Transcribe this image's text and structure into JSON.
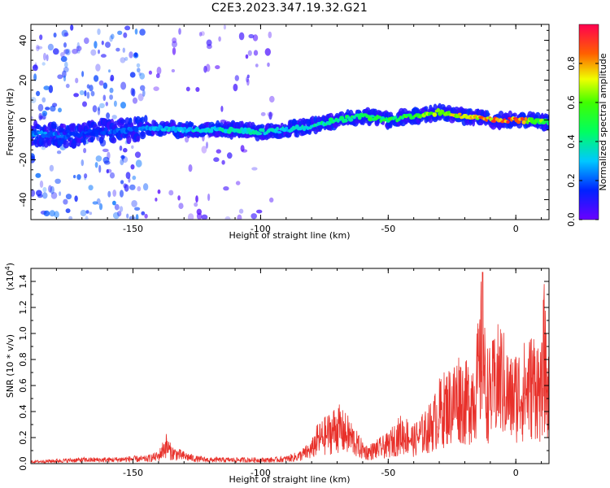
{
  "title": "C2E3.2023.347.19.32.G21",
  "chart_data": [
    {
      "type": "heatmap",
      "xlabel": "Height of straight line (km)",
      "ylabel": "Frequency (Hz)",
      "xlim": [
        -190,
        13
      ],
      "ylim": [
        -50,
        48
      ],
      "xticks": [
        -150,
        -100,
        -50,
        0
      ],
      "yticks": [
        -40,
        -20,
        0,
        20,
        40
      ],
      "colorbar": {
        "label": "Normalized spectral amplitude",
        "ticks": [
          0.0,
          0.2,
          0.4,
          0.6,
          0.8
        ],
        "tick_labels": [
          "0.0",
          "0.2",
          "0.4",
          "0.6",
          "0.8"
        ],
        "range": [
          0,
          1
        ]
      },
      "ridge": {
        "x": [
          -185,
          -175,
          -165,
          -150,
          -140,
          -130,
          -120,
          -110,
          -100,
          -90,
          -80,
          -70,
          -60,
          -50,
          -40,
          -30,
          -20,
          -10,
          0,
          12
        ],
        "y": [
          -7,
          -8,
          -6,
          -5,
          -4,
          -5,
          -5,
          -5,
          -6,
          -5,
          -3,
          0,
          2,
          0,
          2,
          4,
          2,
          0,
          0,
          -1
        ],
        "amplitude": [
          0.25,
          0.2,
          0.18,
          0.22,
          0.3,
          0.35,
          0.35,
          0.4,
          0.38,
          0.35,
          0.4,
          0.45,
          0.5,
          0.5,
          0.6,
          0.7,
          0.8,
          0.85,
          0.95,
          0.55
        ]
      },
      "scatter_regions": [
        {
          "x": [
            -190,
            -145
          ],
          "density": 0.85,
          "intensity": 0.15
        },
        {
          "x": [
            -145,
            -115
          ],
          "density": 0.25,
          "intensity": 0.05
        },
        {
          "x": [
            -115,
            -95
          ],
          "density": 0.3,
          "intensity": 0.06
        }
      ]
    },
    {
      "type": "line",
      "xlabel": "Height of straight line (km)",
      "ylabel": "SNR (10 * v/v)",
      "multiplier_label": "(x10",
      "multiplier_exp": "4",
      "xlim": [
        -190,
        13
      ],
      "ylim": [
        0,
        1.5
      ],
      "xticks": [
        -150,
        -100,
        -50,
        0
      ],
      "yticks": [
        0.0,
        0.2,
        0.4,
        0.6,
        0.8,
        1.0,
        1.2,
        1.4
      ],
      "ytick_labels": [
        "0.0",
        "0.2",
        "0.4",
        "0.6",
        "0.8",
        "1.0",
        "1.2",
        "1.4"
      ],
      "color": "#e8302a",
      "series": [
        {
          "x": [
            -190,
            -180,
            -170,
            -160,
            -150,
            -145,
            -140,
            -137,
            -135,
            -130,
            -125,
            -120,
            -110,
            -100,
            -95,
            -90,
            -85,
            -80,
            -78,
            -75,
            -72,
            -70,
            -68,
            -65,
            -62,
            -60,
            -58,
            -55,
            -52,
            -50,
            -48,
            -45,
            -42,
            -40,
            -38,
            -35,
            -32,
            -30,
            -28,
            -25,
            -22,
            -20,
            -18,
            -16,
            -14,
            -13,
            -12,
            -10,
            -8,
            -6,
            -4,
            -2,
            0,
            2,
            4,
            6,
            8,
            10,
            11,
            12,
            13
          ],
          "y": [
            0.02,
            0.03,
            0.04,
            0.04,
            0.05,
            0.05,
            0.08,
            0.2,
            0.12,
            0.08,
            0.05,
            0.04,
            0.04,
            0.04,
            0.04,
            0.05,
            0.08,
            0.15,
            0.25,
            0.3,
            0.35,
            0.4,
            0.35,
            0.3,
            0.2,
            0.15,
            0.12,
            0.15,
            0.18,
            0.2,
            0.25,
            0.32,
            0.3,
            0.25,
            0.3,
            0.35,
            0.45,
            0.55,
            0.6,
            0.65,
            0.75,
            0.65,
            0.7,
            0.8,
            1.0,
            1.47,
            0.8,
            0.75,
            0.85,
            0.95,
            0.8,
            0.7,
            0.75,
            0.78,
            0.8,
            0.85,
            0.9,
            0.7,
            1.2,
            0.85,
            0.7
          ]
        }
      ]
    }
  ]
}
